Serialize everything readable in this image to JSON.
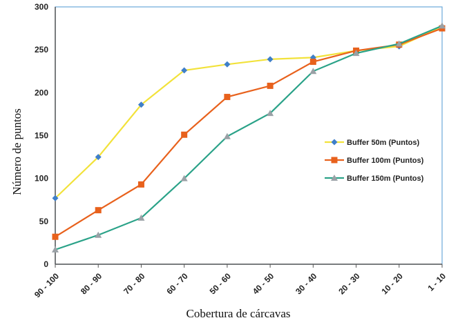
{
  "chart_data": {
    "type": "line",
    "xlabel": "Cobertura de cárcavas",
    "ylabel": "Número de puntos",
    "categories": [
      "90 - 100",
      "80 - 90",
      "70 - 80",
      "60 - 70",
      "50 - 60",
      "40 - 50",
      "30 - 40",
      "20 - 30",
      "10 - 20",
      "1 - 10"
    ],
    "ylim": [
      0,
      300
    ],
    "yticks": [
      0,
      50,
      100,
      150,
      200,
      250,
      300
    ],
    "grid": false,
    "legend_position": "right",
    "series": [
      {
        "name": "Buffer 50m (Puntos)",
        "line_color": "#f2e23a",
        "marker_color": "#3f7fc9",
        "marker": "diamond",
        "values": [
          77,
          125,
          186,
          226,
          233,
          239,
          241,
          249,
          254,
          277
        ]
      },
      {
        "name": "Buffer 100m (Puntos)",
        "line_color": "#e8611c",
        "marker_color": "#e8611c",
        "marker": "square",
        "values": [
          32,
          63,
          93,
          151,
          195,
          208,
          236,
          249,
          256,
          275
        ]
      },
      {
        "name": "Buffer 150m (Puntos)",
        "line_color": "#2aa288",
        "marker_color": "#9aa1a6",
        "marker": "triangle",
        "values": [
          17,
          34,
          54,
          100,
          149,
          176,
          225,
          246,
          257,
          278
        ]
      }
    ]
  }
}
